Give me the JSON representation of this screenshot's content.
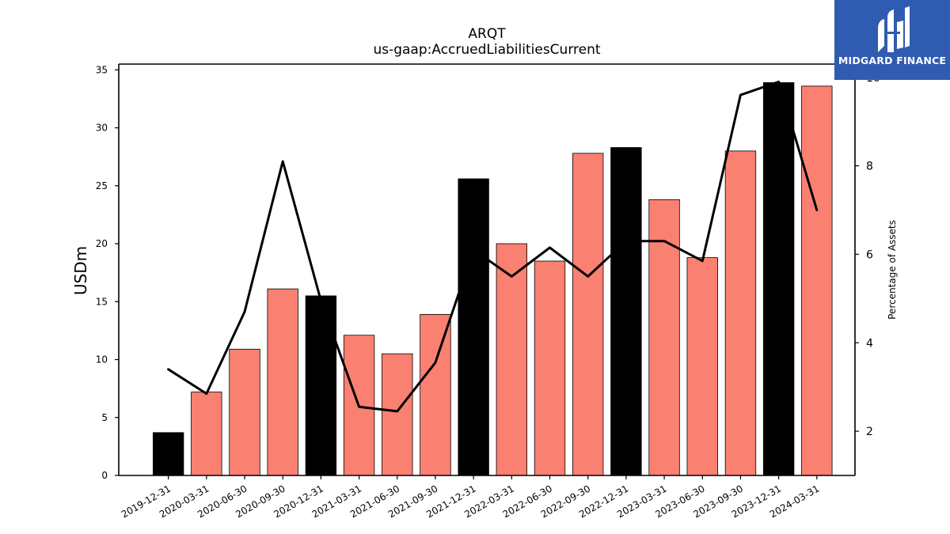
{
  "chart_data": {
    "type": "bar",
    "title": "ARQT",
    "subtitle": "us-gaap:AccruedLiabilitiesCurrent",
    "ylabel": "USDm",
    "y2label": "Percentage of Assets",
    "ylim": [
      0,
      35.5
    ],
    "y2lim": [
      1.0,
      10.3
    ],
    "yticks": [
      0,
      5,
      10,
      15,
      20,
      25,
      30,
      35
    ],
    "y2ticks": [
      2,
      4,
      6,
      8,
      10
    ],
    "categories": [
      "2019-12-31",
      "2020-03-31",
      "2020-06-30",
      "2020-09-30",
      "2020-12-31",
      "2021-03-31",
      "2021-06-30",
      "2021-09-30",
      "2021-12-31",
      "2022-03-31",
      "2022-06-30",
      "2022-09-30",
      "2022-12-31",
      "2023-03-31",
      "2023-06-30",
      "2023-09-30",
      "2023-12-31",
      "2024-03-31"
    ],
    "series": [
      {
        "type": "bar",
        "axis": "left",
        "values": [
          3.7,
          7.2,
          10.9,
          16.1,
          15.5,
          12.1,
          10.5,
          13.9,
          25.6,
          20.0,
          18.5,
          27.8,
          28.3,
          23.8,
          18.8,
          28.0,
          33.9,
          33.6
        ],
        "colors": [
          "#000000",
          "#fa8072",
          "#fa8072",
          "#fa8072",
          "#000000",
          "#fa8072",
          "#fa8072",
          "#fa8072",
          "#000000",
          "#fa8072",
          "#fa8072",
          "#fa8072",
          "#000000",
          "#fa8072",
          "#fa8072",
          "#fa8072",
          "#000000",
          "#fa8072"
        ]
      },
      {
        "type": "line",
        "axis": "right",
        "color": "#000000",
        "values": [
          3.4,
          2.85,
          4.7,
          8.1,
          4.95,
          2.55,
          2.45,
          3.55,
          6.1,
          5.5,
          6.15,
          5.5,
          6.3,
          6.3,
          5.85,
          9.6,
          9.9,
          7.0
        ]
      }
    ],
    "grid": false,
    "legend": "none"
  },
  "logo": {
    "text": "MIDGARD FINANCE",
    "icon": "midgard-logo-icon",
    "background": "#2f5bb0"
  }
}
